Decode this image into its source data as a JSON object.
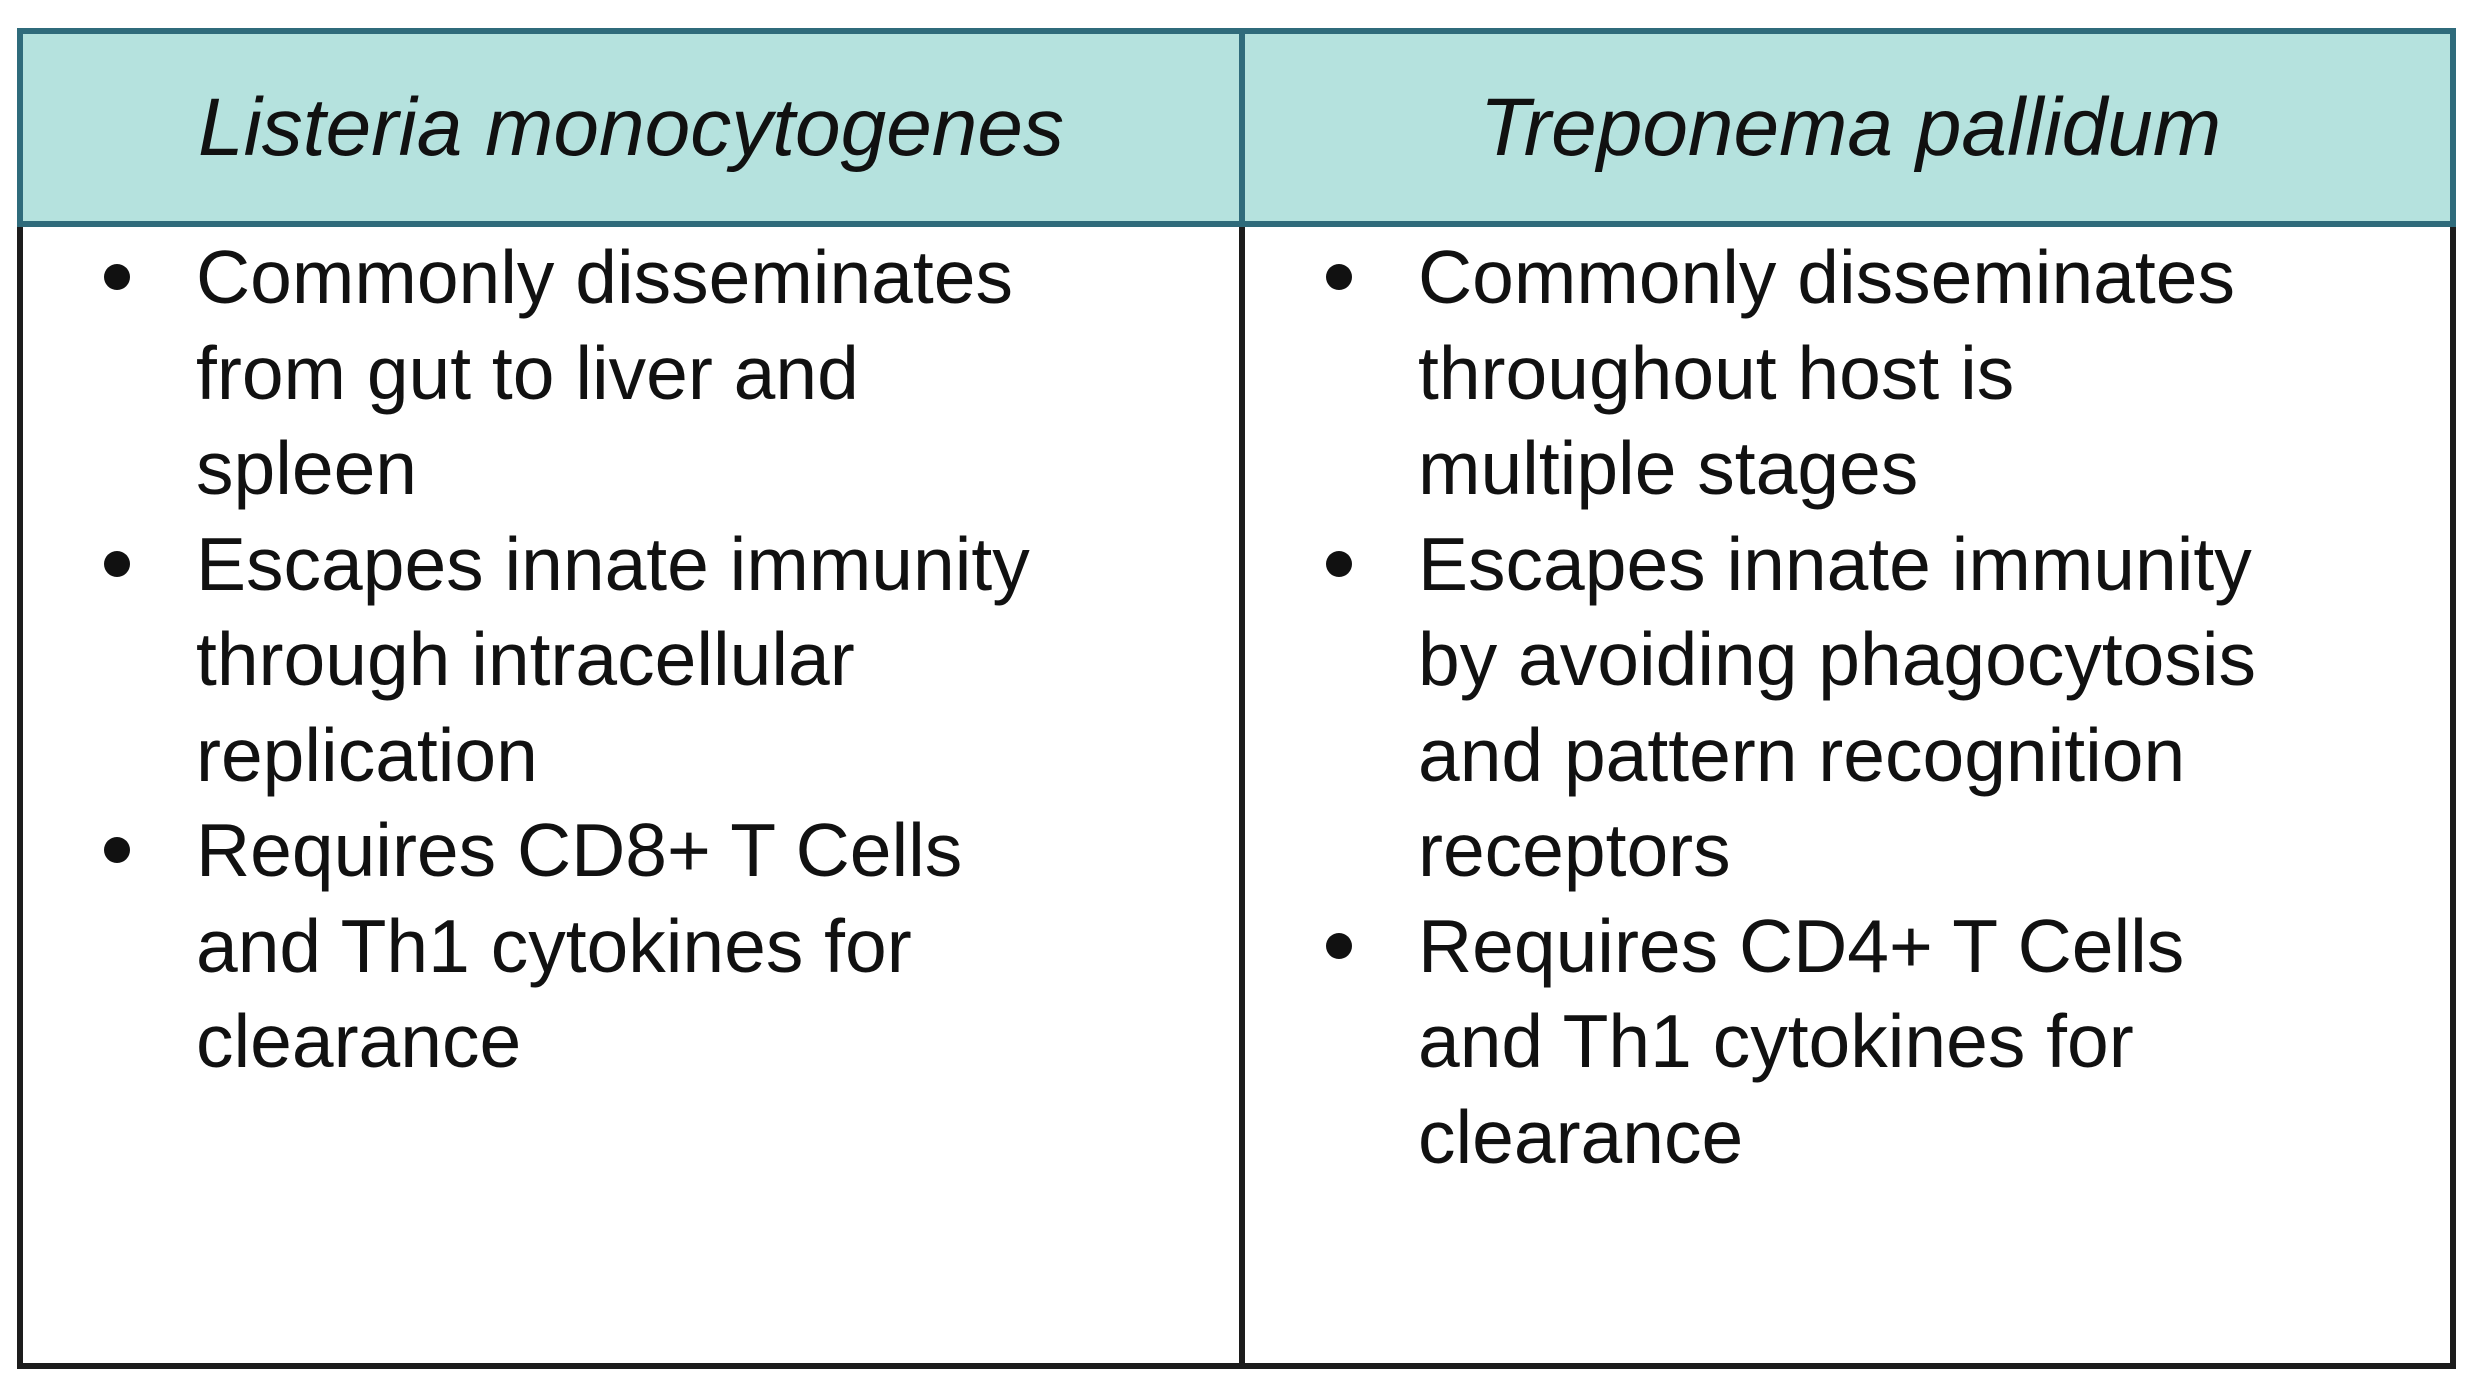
{
  "table": {
    "columns": [
      {
        "header": "Listeria monocytogenes",
        "items": [
          [
            "Commonly disseminates",
            "from gut to liver and",
            "spleen"
          ],
          [
            "Escapes innate immunity",
            "through intracellular",
            "replication"
          ],
          [
            "Requires CD8+ T Cells",
            "and Th1 cytokines for",
            "clearance"
          ]
        ]
      },
      {
        "header": "Treponema pallidum",
        "items": [
          [
            "Commonly disseminates",
            "throughout host is",
            "multiple stages"
          ],
          [
            "Escapes innate immunity",
            "by avoiding phagocytosis",
            "and pattern recognition",
            "receptors"
          ],
          [
            "Requires CD4+ T Cells",
            "and Th1 cytokines for",
            "clearance"
          ]
        ]
      }
    ],
    "colors": {
      "header_bg": "#b5e2de",
      "header_border": "#2f6b7b",
      "border": "#1c1c1c",
      "text": "#111111"
    }
  }
}
